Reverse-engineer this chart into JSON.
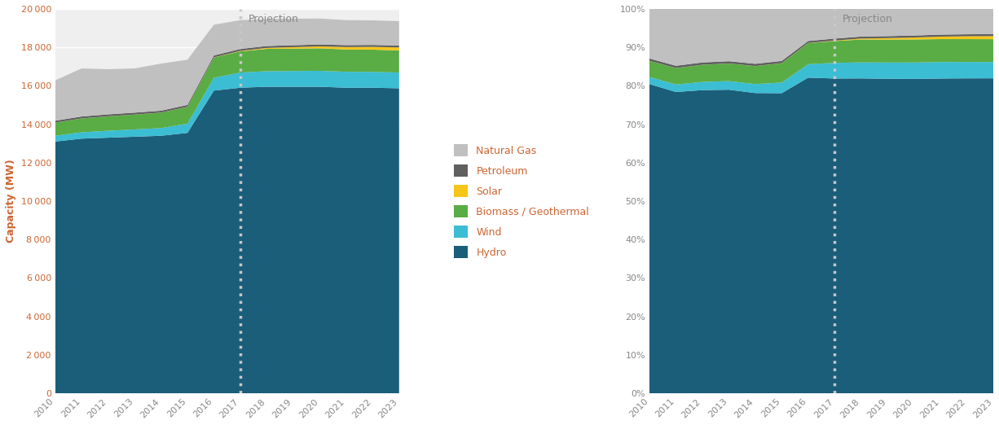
{
  "years": [
    2010,
    2011,
    2012,
    2013,
    2014,
    2015,
    2016,
    2017,
    2018,
    2019,
    2020,
    2021,
    2022,
    2023
  ],
  "hydro": [
    13100,
    13250,
    13300,
    13350,
    13400,
    13550,
    15750,
    15900,
    15950,
    15950,
    15950,
    15900,
    15900,
    15870
  ],
  "wind": [
    300,
    330,
    360,
    380,
    400,
    480,
    670,
    790,
    810,
    820,
    830,
    830,
    825,
    820
  ],
  "biomass": [
    680,
    720,
    750,
    770,
    800,
    870,
    1050,
    1100,
    1160,
    1165,
    1170,
    1160,
    1155,
    1150
  ],
  "solar": [
    3,
    3,
    3,
    3,
    4,
    5,
    8,
    25,
    50,
    75,
    100,
    125,
    145,
    155
  ],
  "petroleum": [
    100,
    100,
    100,
    100,
    100,
    100,
    100,
    100,
    100,
    100,
    100,
    100,
    100,
    100
  ],
  "natgas": [
    2100,
    2500,
    2350,
    2300,
    2450,
    2350,
    1600,
    1500,
    1400,
    1380,
    1350,
    1300,
    1280,
    1270
  ],
  "colors": {
    "hydro": "#1b5e7a",
    "wind": "#3bbdd4",
    "biomass": "#5aac44",
    "solar": "#f5c518",
    "petroleum": "#606060",
    "natgas": "#c0c0c0"
  },
  "legend_labels": {
    "natgas": "Natural Gas",
    "petroleum": "Petroleum",
    "solar": "Solar",
    "biomass": "Biomass / Geothermal",
    "wind": "Wind",
    "hydro": "Hydro"
  },
  "projection_year": 2017,
  "left_yticks": [
    0,
    2000,
    4000,
    6000,
    8000,
    10000,
    12000,
    14000,
    16000,
    18000,
    20000
  ],
  "right_yticks": [
    0.0,
    0.1,
    0.2,
    0.3,
    0.4,
    0.5,
    0.6,
    0.7,
    0.8,
    0.9,
    1.0
  ],
  "ylabel_left": "Capacity (MW)",
  "projection_label": "Projection",
  "bg_color": "#ffffff",
  "plot_bg": "#efefef",
  "grid_color": "#ffffff",
  "dotted_line_color": "#c8c8c8",
  "projection_text_color": "#888888",
  "left_y_tick_color": "#cc6633",
  "right_y_tick_color": "#888888",
  "x_tick_color": "#888888",
  "ylabel_color": "#cc6633",
  "legend_text_color": "#cc6633"
}
